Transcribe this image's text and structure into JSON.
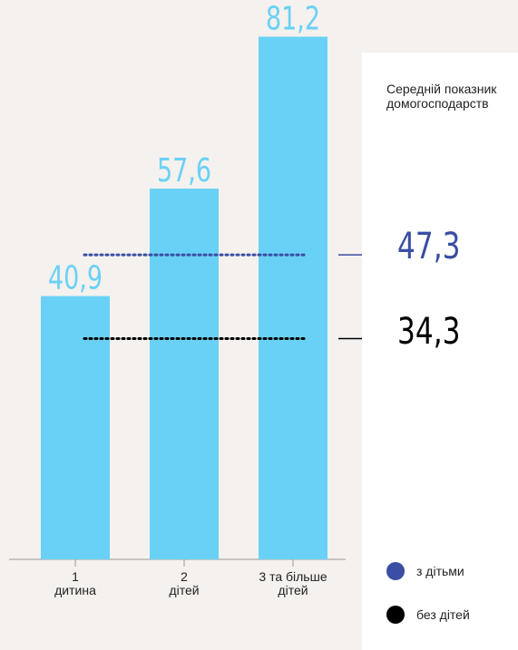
{
  "chart_data": {
    "type": "bar",
    "categories": [
      [
        "1",
        "дитина"
      ],
      [
        "2",
        "дітей"
      ],
      [
        "3 та більше",
        "дітей"
      ]
    ],
    "values": [
      40.9,
      57.6,
      81.2
    ],
    "value_labels": [
      "40,9",
      "57,6",
      "81,2"
    ],
    "ylim": [
      0,
      90
    ],
    "grid": false,
    "reference_lines": [
      {
        "label": "з дітьми",
        "value": 47.3,
        "display": "47,3",
        "color": "#3a4ea3"
      },
      {
        "label": "без дітей",
        "value": 34.3,
        "display": "34,3",
        "color": "#000000"
      }
    ],
    "colors": {
      "bar": "#6ad1f6",
      "bar_label": "#6ad1f6",
      "axis": "#999999",
      "background": "#f4f1ee"
    }
  },
  "panel": {
    "title": "Середній показник домогосподарств",
    "with_children_value": "47,3",
    "without_children_value": "34,3"
  },
  "legend": {
    "with_children": {
      "label": "з дітьми",
      "color": "#3a4ea3"
    },
    "without_children": {
      "label": "без дітей",
      "color": "#000000"
    }
  }
}
